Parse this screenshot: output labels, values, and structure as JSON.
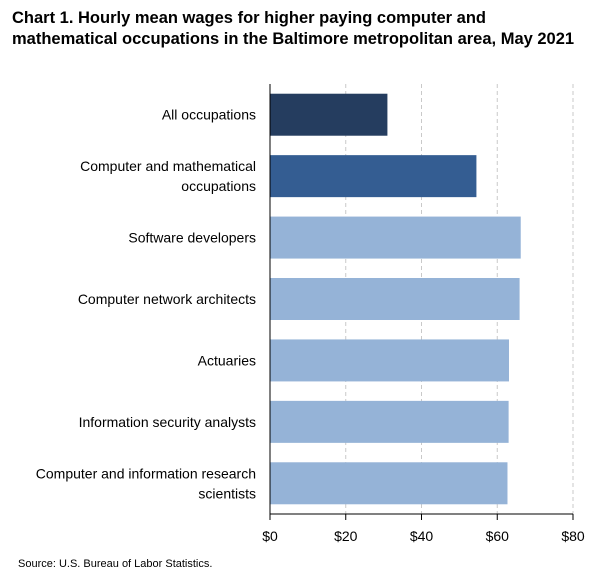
{
  "title": "Chart 1. Hourly mean wages for higher paying computer and mathematical occupations in the Baltimore metropolitan area, May 2021",
  "source": "Source: U.S. Bureau of Labor Statistics.",
  "colors": {
    "all_occupations": "#253d5f",
    "group": "#345d92",
    "occupation": "#95b3d7",
    "grid": "#c9c9c9"
  },
  "chart_data": {
    "type": "bar",
    "orientation": "horizontal",
    "categories": [
      [
        "All occupations"
      ],
      [
        "Computer and mathematical",
        "occupations"
      ],
      [
        "Software developers"
      ],
      [
        "Computer network architects"
      ],
      [
        "Actuaries"
      ],
      [
        "Information security analysts"
      ],
      [
        "Computer and information research",
        "scientists"
      ]
    ],
    "values": [
      31.0,
      54.5,
      66.2,
      65.9,
      63.1,
      63.0,
      62.7
    ],
    "bar_color_keys": [
      "all_occupations",
      "group",
      "occupation",
      "occupation",
      "occupation",
      "occupation",
      "occupation"
    ],
    "xlim": [
      0,
      80
    ],
    "xticks": [
      0,
      20,
      40,
      60,
      80
    ],
    "xtick_labels": [
      "$0",
      "$20",
      "$40",
      "$60",
      "$80"
    ],
    "xlabel": "",
    "ylabel": "",
    "grid": "vertical dashed"
  }
}
